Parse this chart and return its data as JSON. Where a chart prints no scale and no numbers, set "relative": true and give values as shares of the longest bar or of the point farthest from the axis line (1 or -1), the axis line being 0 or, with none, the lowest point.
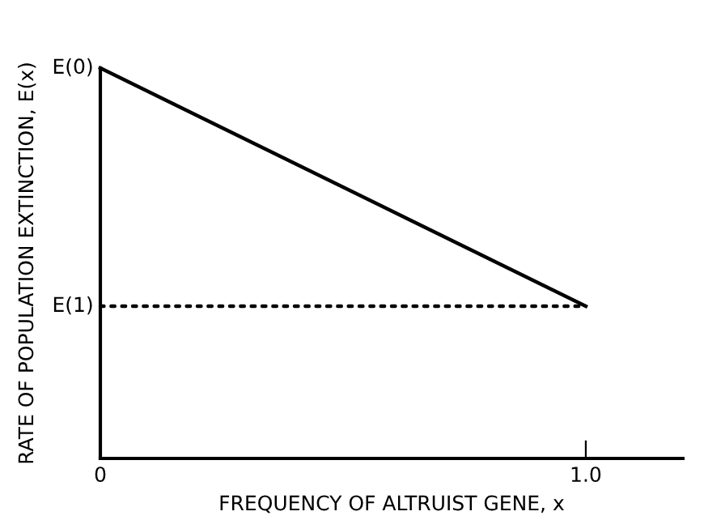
{
  "chart_data": {
    "type": "line",
    "relative": true,
    "xlabel": "FREQUENCY OF ALTRUIST GENE, x",
    "ylabel": "RATE OF POPULATION EXTINCTION, E(x)",
    "x": [
      0,
      1
    ],
    "xlim": [
      0,
      1.2
    ],
    "xticks": [
      0,
      {
        "value": 1,
        "label": "1.0"
      }
    ],
    "series": [
      {
        "color": "#000000",
        "values": [
          1,
          0.39
        ],
        "line_style": "solid"
      },
      {
        "color": "#000000",
        "values": [
          0.39,
          0.39
        ],
        "line_style": "dotted"
      }
    ],
    "annotations": [
      {
        "text": "E(0)",
        "x": 0,
        "y": 1
      },
      {
        "text": "E(1)",
        "x": 0,
        "y": 0.39
      }
    ],
    "grid": false,
    "legend": false
  }
}
